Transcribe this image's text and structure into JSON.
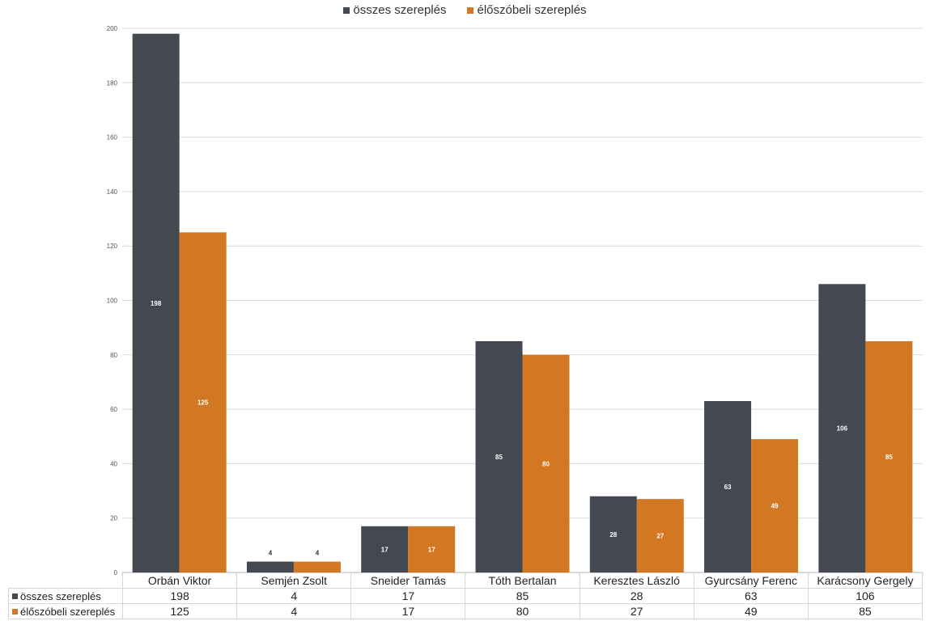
{
  "chart_data": {
    "type": "bar",
    "categories": [
      "Orbán Viktor",
      "Semjén Zsolt",
      "Sneider Tamás",
      "Tóth Bertalan",
      "Keresztes László",
      "Gyurcsány Ferenc",
      "Karácsony Gergely"
    ],
    "series": [
      {
        "name": "összes szereplés",
        "color": "#434851",
        "values": [
          198,
          4,
          17,
          85,
          28,
          63,
          106
        ]
      },
      {
        "name": "élőszóbeli szereplés",
        "color": "#d27722",
        "values": [
          125,
          4,
          17,
          80,
          27,
          49,
          85
        ]
      }
    ],
    "ylim": [
      0,
      200
    ],
    "yticks": [
      0,
      20,
      40,
      60,
      80,
      100,
      120,
      140,
      160,
      180,
      200
    ],
    "title": "",
    "xlabel": "",
    "ylabel": "",
    "legend_position": "top-center",
    "grid": true,
    "data_table": true
  }
}
